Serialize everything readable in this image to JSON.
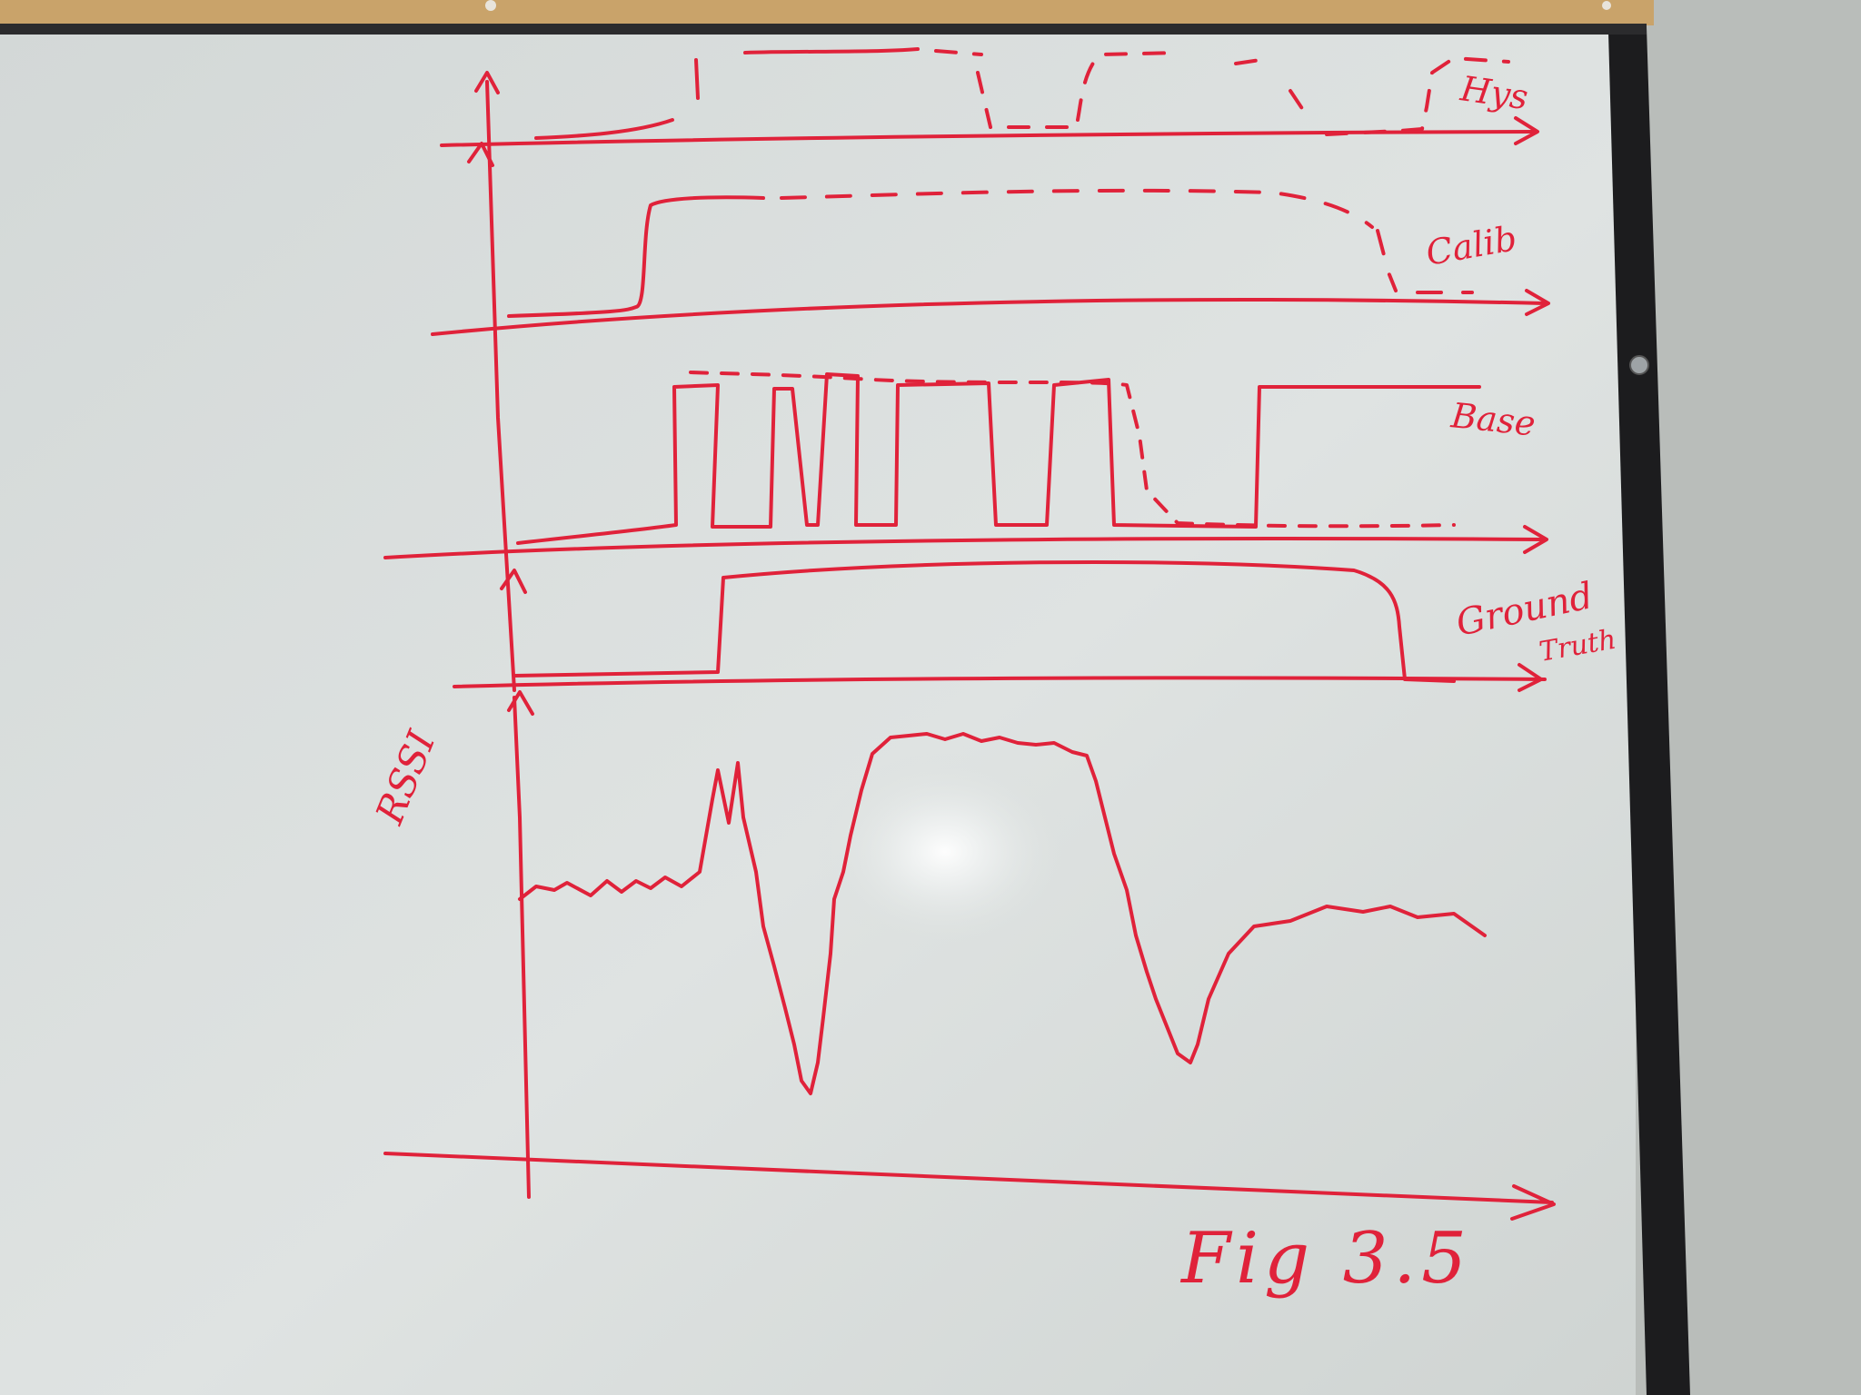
{
  "photo": {
    "subject": "whiteboard",
    "ink_color": "#e0223a",
    "board_color": "#d9dedc",
    "frame_color": "#1c1c1e",
    "corkboard_color": "#c9a36a",
    "wall_color": "#b8bcb9"
  },
  "labels": {
    "hys": "Hys",
    "calib": "Calib",
    "base": "Base",
    "ground_truth_line1": "Ground",
    "ground_truth_line2": "Truth",
    "rssi": "RSSI",
    "figure": "Fig 3.5"
  },
  "icons": {
    "board_screw": "screw-icon",
    "corner_arrows": "arrowhead-icon"
  }
}
